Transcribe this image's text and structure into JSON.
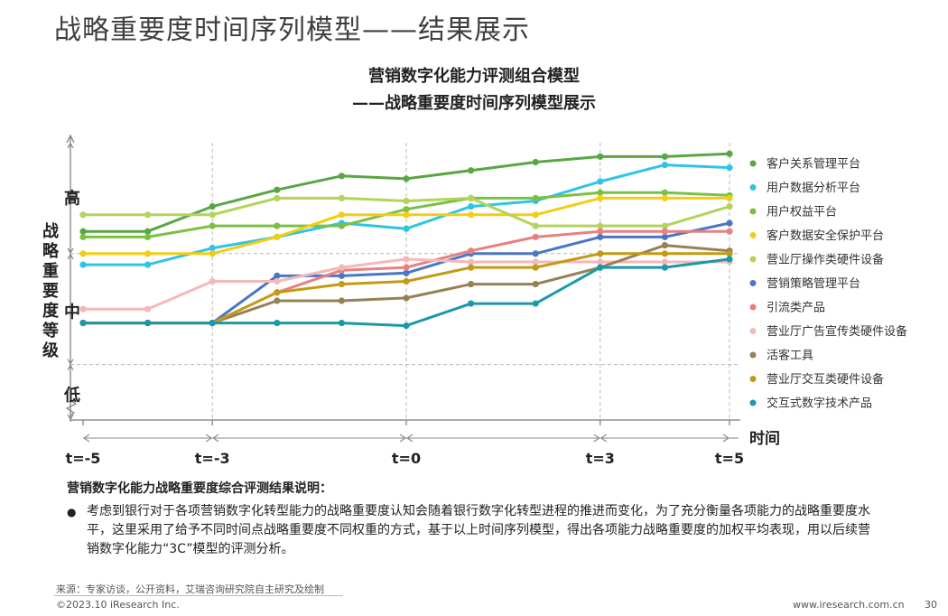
{
  "page": {
    "title": "战略重要度时间序列模型——结果展示"
  },
  "chart_data": {
    "type": "line",
    "title_line1": "营销数字化能力评测组合模型",
    "title_line2": "——战略重要度时间序列模型展示",
    "ylabel": "战略重要度等级",
    "xlabel": "时间",
    "y_levels": [
      "高",
      "中",
      "低"
    ],
    "x_ticks": [
      "t=-5",
      "t=-3",
      "t=0",
      "t=3",
      "t=5"
    ],
    "x": [
      -5,
      -4,
      -3,
      -2,
      -1,
      0,
      1,
      2,
      3,
      4,
      5
    ],
    "xlim": [
      -5,
      5
    ],
    "ylim": [
      0,
      10
    ],
    "grid": "dashed lines at level boundaries and key time points",
    "legend_position": "right",
    "series": [
      {
        "name": "客户关系管理平台",
        "color": "#59a644",
        "values": [
          6.8,
          6.8,
          7.7,
          8.3,
          8.8,
          8.7,
          9.0,
          9.3,
          9.5,
          9.5,
          9.6
        ]
      },
      {
        "name": "用户数据分析平台",
        "color": "#2ec4e8",
        "values": [
          5.6,
          5.6,
          6.2,
          6.6,
          7.1,
          6.9,
          7.7,
          7.9,
          8.6,
          9.2,
          9.1
        ]
      },
      {
        "name": "用户权益平台",
        "color": "#7ac143",
        "values": [
          6.6,
          6.6,
          7.0,
          7.0,
          7.0,
          7.6,
          8.0,
          8.0,
          8.2,
          8.2,
          8.1
        ]
      },
      {
        "name": "客户数据安全保护平台",
        "color": "#f5cc14",
        "values": [
          6.0,
          6.0,
          6.0,
          6.6,
          7.4,
          7.4,
          7.4,
          7.4,
          8.0,
          8.0,
          8.0
        ]
      },
      {
        "name": "营业厅操作类硬件设备",
        "color": "#b3d35a",
        "values": [
          7.4,
          7.4,
          7.4,
          8.0,
          8.0,
          7.9,
          8.0,
          7.0,
          7.0,
          7.0,
          7.7
        ]
      },
      {
        "name": "营销策略管理平台",
        "color": "#4a76c7",
        "values": [
          3.5,
          3.5,
          3.5,
          5.2,
          5.2,
          5.3,
          6.0,
          6.0,
          6.6,
          6.6,
          7.1
        ]
      },
      {
        "name": "引流类产品",
        "color": "#e88080",
        "values": [
          3.5,
          3.5,
          3.5,
          4.6,
          5.4,
          5.5,
          6.1,
          6.6,
          6.8,
          6.8,
          6.8
        ]
      },
      {
        "name": "营业厅广告宣传类硬件设备",
        "color": "#f4b8b8",
        "values": [
          4.0,
          4.0,
          5.0,
          5.0,
          5.5,
          5.8,
          5.7,
          5.7,
          5.7,
          5.7,
          5.7
        ]
      },
      {
        "name": "活客工具",
        "color": "#968154",
        "values": [
          3.5,
          3.5,
          3.5,
          4.3,
          4.3,
          4.4,
          4.9,
          4.9,
          5.5,
          6.3,
          6.1
        ]
      },
      {
        "name": "营业厅交互类硬件设备",
        "color": "#c49a12",
        "values": [
          3.5,
          3.5,
          3.5,
          4.6,
          4.9,
          5.0,
          5.5,
          5.5,
          6.0,
          6.0,
          6.0
        ]
      },
      {
        "name": "交互式数字技术产品",
        "color": "#1b99a9",
        "values": [
          3.5,
          3.5,
          3.5,
          3.5,
          3.5,
          3.4,
          4.2,
          4.2,
          5.5,
          5.5,
          5.8
        ]
      }
    ]
  },
  "notes": {
    "heading": "营销数字化能力战略重要度综合评测结果说明：",
    "bullet": "●",
    "body": "考虑到银行对于各项营销数字化转型能力的战略重要度认知会随着银行数字化转型进程的推进而变化，为了充分衡量各项能力的战略重要度水平，这里采用了给予不同时间点战略重要度不同权重的方式，基于以上时间序列模型，得出各项能力战略重要度的加权平均表现，用以后续营销数字化能力“3C”模型的评测分析。"
  },
  "footer": {
    "source": "来源：专家访谈，公开资料，艾瑞咨询研究院自主研究及绘制",
    "copyright": "©2023.10 iResearch Inc.",
    "site": "www.iresearch.com.cn",
    "page": "30"
  }
}
